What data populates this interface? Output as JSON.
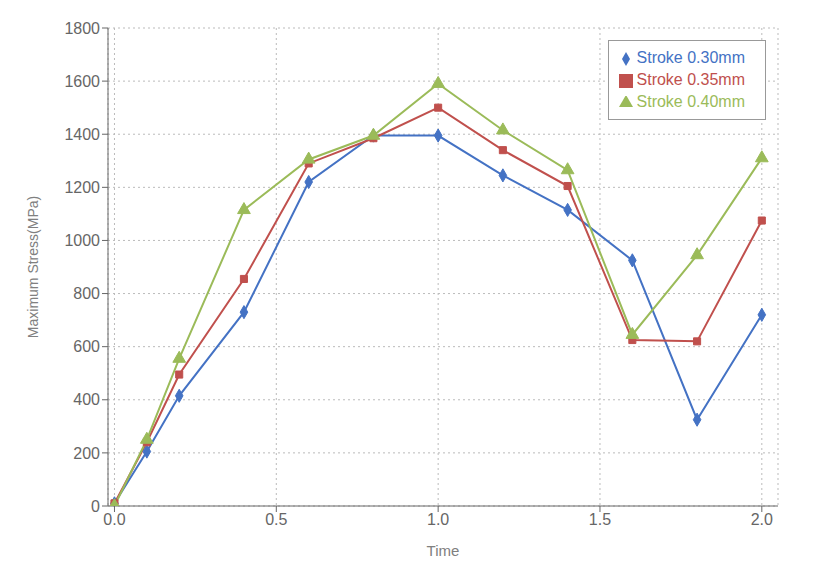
{
  "chart_data": {
    "type": "line",
    "xlabel": "Time",
    "ylabel": "Maximum Stress(MPa)",
    "x": [
      0.0,
      0.1,
      0.2,
      0.4,
      0.6,
      0.8,
      1.0,
      1.2,
      1.4,
      1.6,
      1.8,
      2.0
    ],
    "series": [
      {
        "name": "Stroke 0.30mm",
        "color": "#4472C4",
        "marker": "diamond",
        "values": [
          10,
          205,
          415,
          730,
          1220,
          1395,
          1395,
          1245,
          1115,
          925,
          325,
          720
        ]
      },
      {
        "name": "Stroke 0.35mm",
        "color": "#C0504D",
        "marker": "square",
        "values": [
          10,
          240,
          495,
          855,
          1290,
          1385,
          1500,
          1340,
          1205,
          625,
          620,
          1075
        ]
      },
      {
        "name": "Stroke 0.40mm",
        "color": "#9BBB59",
        "marker": "triangle",
        "values": [
          0,
          250,
          555,
          1115,
          1305,
          1395,
          1590,
          1415,
          1265,
          645,
          945,
          1310
        ]
      }
    ],
    "xlim": [
      -0.02,
      2.05
    ],
    "xticks": [
      {
        "value": 0.0,
        "label": "0.0"
      },
      {
        "value": 0.5,
        "label": "0.5"
      },
      {
        "value": 1.0,
        "label": "1.0"
      },
      {
        "value": 1.5,
        "label": "1.5"
      },
      {
        "value": 2.0,
        "label": "2.0"
      }
    ],
    "ylim": [
      0,
      1800
    ],
    "yticks": [
      0,
      200,
      400,
      600,
      800,
      1000,
      1200,
      1400,
      1600,
      1800
    ],
    "grid": true,
    "legend": "upper right"
  }
}
